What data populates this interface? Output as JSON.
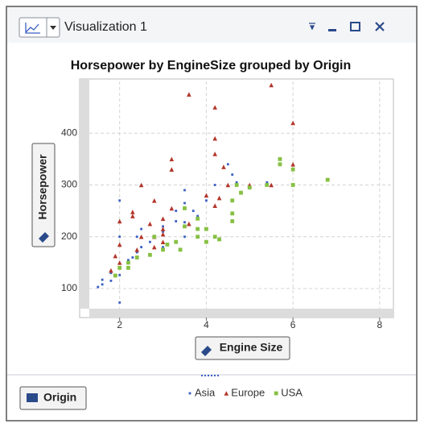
{
  "window": {
    "title": "Visualization 1"
  },
  "chart_data": {
    "type": "scatter",
    "title": "Horsepower by EngineSize grouped by Origin",
    "x_label": "Engine Size",
    "y_label": "Horsepower",
    "legend_title": "Origin",
    "xlim": [
      1.3,
      8.3
    ],
    "xticks": [
      2,
      4,
      6,
      8
    ],
    "ylim": [
      58,
      500
    ],
    "yticks": [
      100,
      200,
      300,
      400
    ],
    "grid": true,
    "series": [
      {
        "name": "Asia",
        "color": "#3a5fc4",
        "marker": "dot",
        "x": [
          1.5,
          1.6,
          1.8,
          1.8,
          2.0,
          2.0,
          2.0,
          2.2,
          2.3,
          2.4,
          2.4,
          2.5,
          2.5,
          2.7,
          3.0,
          3.0,
          3.3,
          3.3,
          3.5,
          3.5,
          3.5,
          3.7,
          3.8,
          4.0,
          4.2,
          4.5,
          4.7,
          2.0,
          1.6,
          3.0,
          2.4,
          2.0,
          3.5,
          4.6,
          5.4
        ],
        "values": [
          103,
          108,
          115,
          130,
          73,
          140,
          270,
          155,
          160,
          170,
          200,
          180,
          215,
          190,
          210,
          180,
          230,
          250,
          228,
          200,
          265,
          250,
          240,
          270,
          300,
          340,
          305,
          200,
          117,
          220,
          160,
          126,
          290,
          320,
          305
        ]
      },
      {
        "name": "Europe",
        "color": "#b3362a",
        "marker": "triangle",
        "x": [
          1.8,
          1.9,
          2.0,
          2.0,
          2.3,
          2.3,
          2.5,
          2.5,
          2.7,
          2.8,
          3.0,
          3.0,
          3.2,
          3.2,
          3.6,
          3.6,
          4.0,
          4.2,
          4.2,
          4.2,
          4.3,
          4.4,
          4.5,
          5.0,
          5.5,
          5.5,
          6.0,
          6.0,
          2.0,
          2.8,
          3.2,
          3.0,
          4.2,
          3.0,
          2.4,
          2.8
        ],
        "values": [
          135,
          163,
          150,
          185,
          240,
          248,
          200,
          300,
          225,
          270,
          215,
          235,
          330,
          350,
          475,
          225,
          280,
          450,
          390,
          360,
          275,
          335,
          300,
          300,
          493,
          300,
          420,
          340,
          230,
          180,
          255,
          205,
          260,
          190,
          175,
          200
        ]
      },
      {
        "name": "USA",
        "color": "#86c043",
        "marker": "square",
        "x": [
          1.9,
          2.0,
          2.2,
          2.2,
          2.4,
          2.7,
          2.8,
          3.0,
          3.1,
          3.3,
          3.4,
          3.5,
          3.5,
          3.8,
          3.8,
          4.0,
          4.2,
          4.3,
          4.6,
          4.6,
          4.7,
          4.8,
          5.0,
          5.4,
          5.7,
          5.7,
          6.0,
          6.0,
          6.8,
          4.6,
          3.8,
          4.0
        ],
        "values": [
          125,
          140,
          140,
          150,
          160,
          165,
          200,
          175,
          185,
          190,
          175,
          220,
          255,
          200,
          215,
          190,
          200,
          195,
          230,
          245,
          300,
          285,
          295,
          300,
          340,
          350,
          300,
          330,
          310,
          270,
          235,
          215
        ]
      }
    ]
  }
}
